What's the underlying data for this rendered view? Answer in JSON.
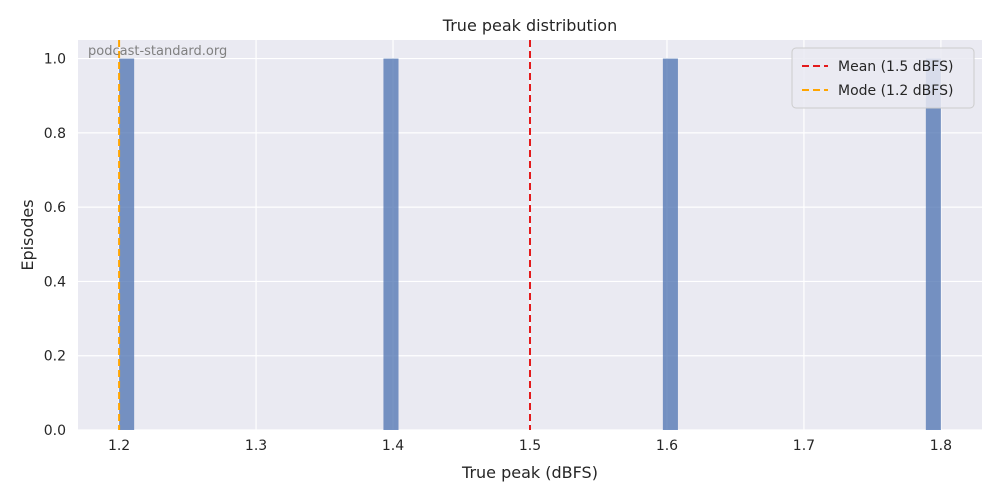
{
  "chart_data": {
    "type": "bar",
    "title": "True peak distribution",
    "xlabel": "True peak (dBFS)",
    "ylabel": "Episodes",
    "xlim": [
      1.17,
      1.83
    ],
    "ylim": [
      0.0,
      1.05
    ],
    "xticks": [
      "1.2",
      "1.3",
      "1.4",
      "1.5",
      "1.6",
      "1.7",
      "1.8"
    ],
    "yticks": [
      "0.0",
      "0.2",
      "0.4",
      "0.6",
      "0.8",
      "1.0"
    ],
    "grid": true,
    "legend_placement": "top-right",
    "bars": [
      {
        "x_start": 1.2,
        "x_end": 1.211,
        "value": 1
      },
      {
        "x_start": 1.393,
        "x_end": 1.404,
        "value": 1
      },
      {
        "x_start": 1.597,
        "x_end": 1.608,
        "value": 1
      },
      {
        "x_start": 1.789,
        "x_end": 1.8,
        "value": 1
      }
    ],
    "bar_color": "#4c72b0",
    "reference_lines": [
      {
        "label": "Mean (1.5 dBFS)",
        "x": 1.5,
        "color": "#e31a1c",
        "style": "dashed"
      },
      {
        "label": "Mode (1.2 dBFS)",
        "x": 1.2,
        "color": "#ffa500",
        "style": "dashed"
      }
    ],
    "watermark": "podcast-standard.org"
  }
}
